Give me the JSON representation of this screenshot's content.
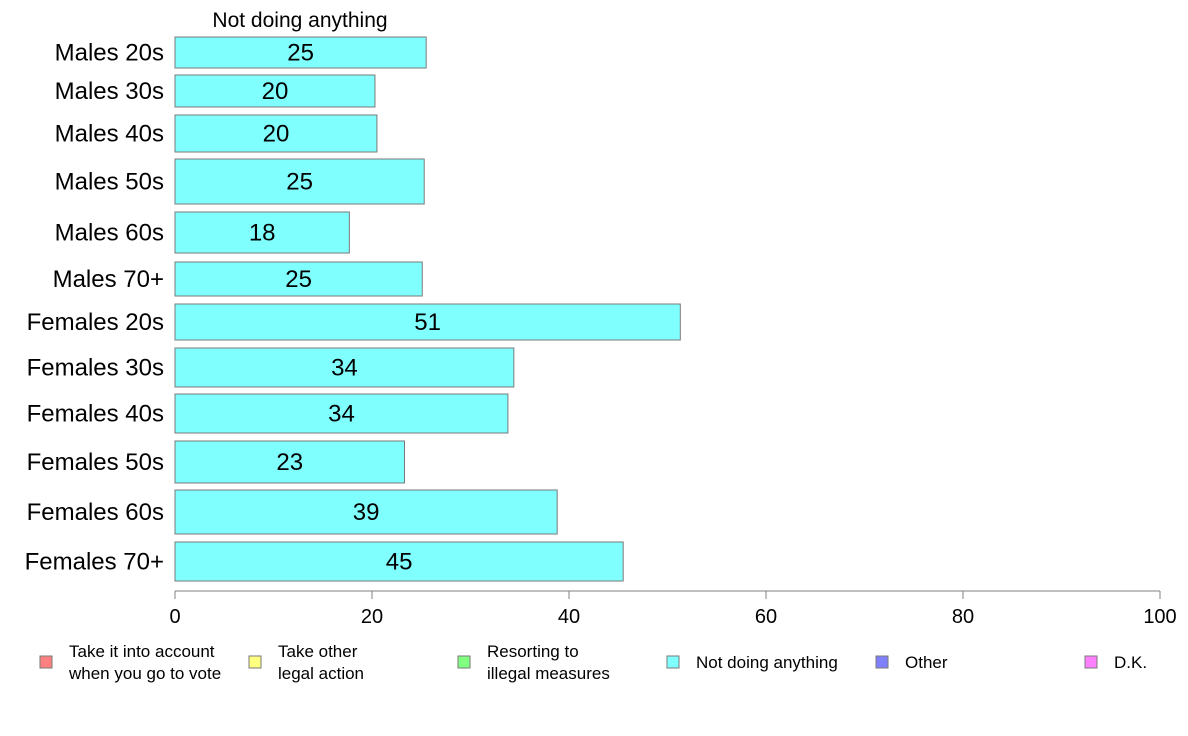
{
  "chart_data": {
    "type": "bar",
    "orientation": "horizontal",
    "title": "Not doing anything",
    "categories": [
      "Males 20s",
      "Males 30s",
      "Males 40s",
      "Males 50s",
      "Males 60s",
      "Males 70+",
      "Females 20s",
      "Females 30s",
      "Females 40s",
      "Females 50s",
      "Females 60s",
      "Females 70+"
    ],
    "series": [
      {
        "name": "Not doing anything",
        "color": "#80ffff",
        "values": [
          25.5,
          20.3,
          20.5,
          25.3,
          17.7,
          25.1,
          51.3,
          34.4,
          33.8,
          23.3,
          38.8,
          45.5
        ],
        "labels": [
          "25",
          "20",
          "20",
          "25",
          "18",
          "25",
          "51",
          "34",
          "34",
          "23",
          "39",
          "45"
        ]
      }
    ],
    "xlim": [
      0,
      100
    ],
    "xticks": [
      0,
      20,
      40,
      60,
      80,
      100
    ],
    "grid": false,
    "legend_position": "bottom",
    "legend": [
      {
        "label_lines": [
          "Take it into account",
          "when you go to vote"
        ],
        "color": "#ff8080"
      },
      {
        "label_lines": [
          "Take other",
          "legal action"
        ],
        "color": "#ffff80"
      },
      {
        "label_lines": [
          "Resorting to",
          "illegal measures"
        ],
        "color": "#80ff80"
      },
      {
        "label_lines": [
          "Not doing anything"
        ],
        "color": "#80ffff"
      },
      {
        "label_lines": [
          "Other"
        ],
        "color": "#8080ff"
      },
      {
        "label_lines": [
          "D.K."
        ],
        "color": "#ff80ff"
      }
    ]
  }
}
